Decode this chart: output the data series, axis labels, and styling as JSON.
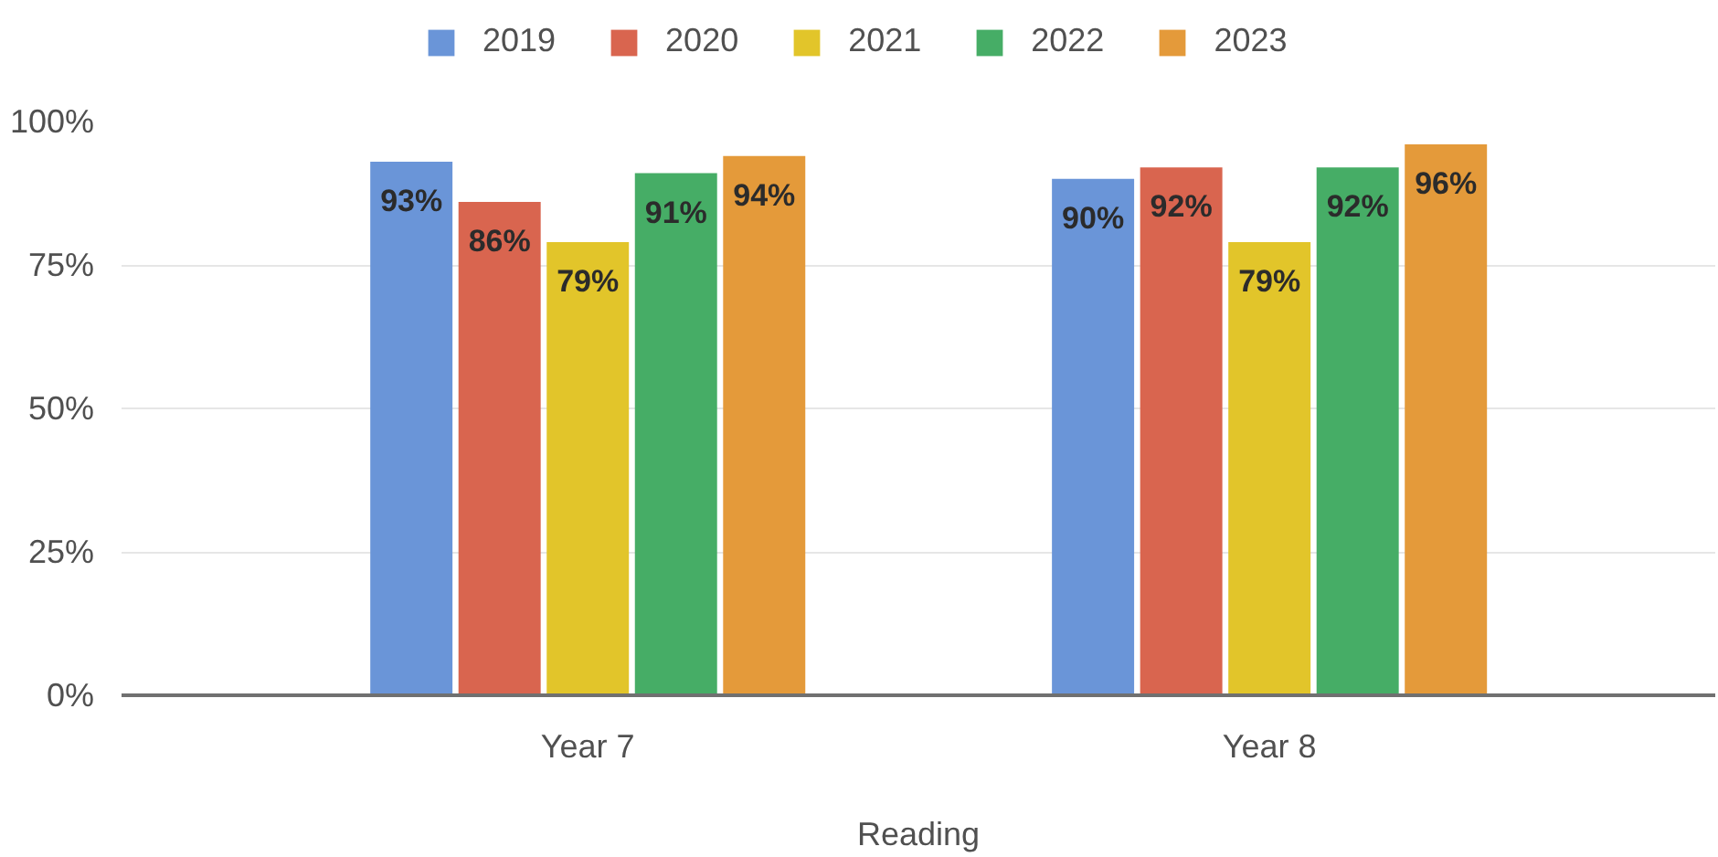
{
  "chart_data": {
    "type": "bar",
    "xlabel": "Reading",
    "categories": [
      "Year 7",
      "Year 8"
    ],
    "series": [
      {
        "name": "2019",
        "color": "#6a95d8",
        "values": [
          93,
          90
        ],
        "value_labels": [
          "93%",
          "90%"
        ]
      },
      {
        "name": "2020",
        "color": "#d9654f",
        "values": [
          86,
          92
        ],
        "value_labels": [
          "86%",
          "92%"
        ]
      },
      {
        "name": "2021",
        "color": "#e2c52a",
        "values": [
          79,
          79
        ],
        "value_labels": [
          "79%",
          "79%"
        ]
      },
      {
        "name": "2022",
        "color": "#46ad66",
        "values": [
          91,
          92
        ],
        "value_labels": [
          "91%",
          "92%"
        ]
      },
      {
        "name": "2023",
        "color": "#e49a3a",
        "values": [
          94,
          96
        ],
        "value_labels": [
          "94%",
          "96%"
        ]
      }
    ],
    "ylim": [
      0,
      100
    ],
    "yticks": [
      {
        "value": 0,
        "label": "0%"
      },
      {
        "value": 25,
        "label": "25%"
      },
      {
        "value": 50,
        "label": "50%"
      },
      {
        "value": 75,
        "label": "75%"
      },
      {
        "value": 100,
        "label": "100%"
      }
    ],
    "grid": "y",
    "legend": "top"
  }
}
